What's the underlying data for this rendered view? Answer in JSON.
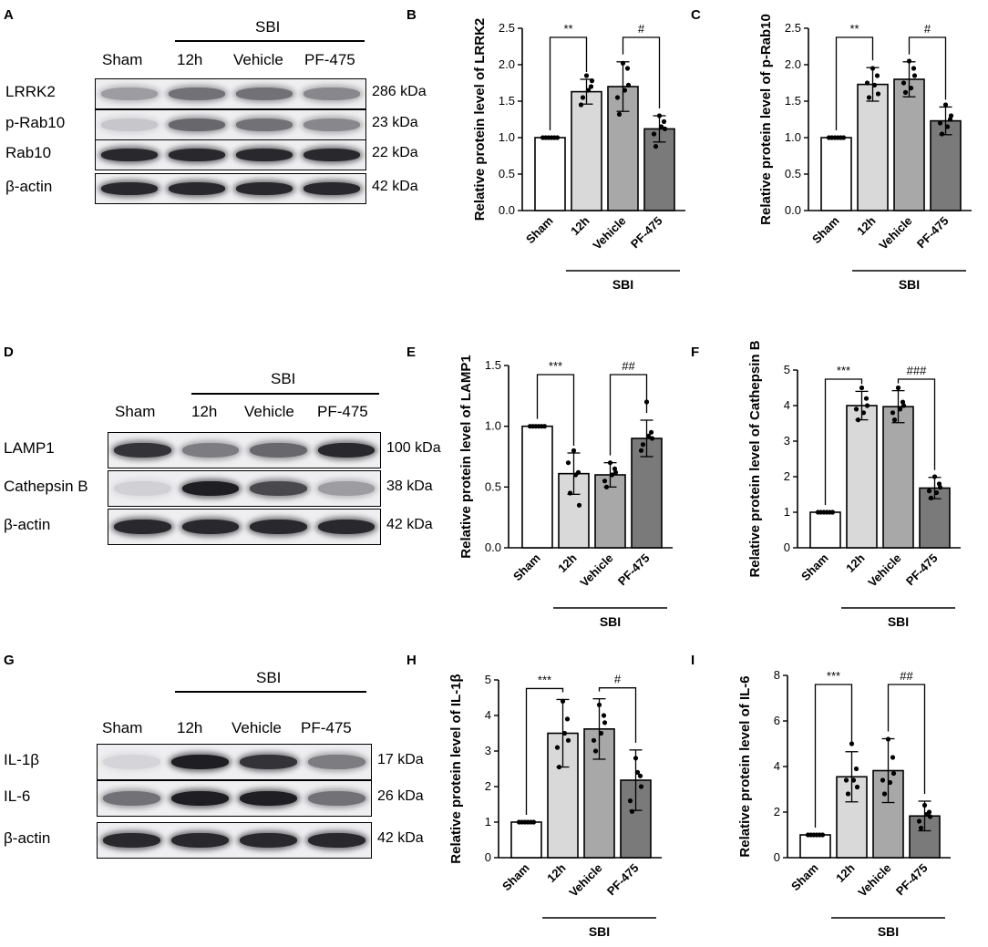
{
  "panels": {
    "A": "A",
    "B": "B",
    "C": "C",
    "D": "D",
    "E": "E",
    "F": "F",
    "G": "G",
    "H": "H",
    "I": "I"
  },
  "blots": [
    {
      "id": "blot-A",
      "group_label": "SBI",
      "lanes": [
        "Sham",
        "12h",
        "Vehicle",
        "PF-475"
      ],
      "rows": [
        {
          "label": "LRRK2",
          "kda": "286 kDa",
          "intensity": [
            0.35,
            0.55,
            0.55,
            0.45
          ]
        },
        {
          "label": "p-Rab10",
          "kda": "23 kDa",
          "intensity": [
            0.15,
            0.6,
            0.55,
            0.45
          ]
        },
        {
          "label": "Rab10",
          "kda": "22 kDa",
          "intensity": [
            0.9,
            0.9,
            0.9,
            0.9
          ]
        },
        {
          "label": "β-actin",
          "kda": "42 kDa",
          "intensity": [
            0.9,
            0.9,
            0.9,
            0.9
          ]
        }
      ]
    },
    {
      "id": "blot-D",
      "group_label": "SBI",
      "lanes": [
        "Sham",
        "12h",
        "Vehicle",
        "PF-475"
      ],
      "rows": [
        {
          "label": "LAMP1",
          "kda": "100 kDa",
          "intensity": [
            0.85,
            0.5,
            0.6,
            0.9
          ]
        },
        {
          "label": "Cathepsin B",
          "kda": "38 kDa",
          "intensity": [
            0.1,
            0.95,
            0.75,
            0.35
          ]
        },
        {
          "label": "β-actin",
          "kda": "42 kDa",
          "intensity": [
            0.9,
            0.9,
            0.9,
            0.9
          ]
        }
      ]
    },
    {
      "id": "blot-G",
      "group_label": "SBI",
      "lanes": [
        "Sham",
        "12h",
        "Vehicle",
        "PF-475"
      ],
      "rows": [
        {
          "label": "IL-1β",
          "kda": "17 kDa",
          "intensity": [
            0.08,
            0.95,
            0.85,
            0.5
          ]
        },
        {
          "label": "IL-6",
          "kda": "26 kDa",
          "intensity": [
            0.55,
            0.95,
            0.95,
            0.55
          ]
        },
        {
          "label": "β-actin",
          "kda": "42 kDa",
          "intensity": [
            0.9,
            0.9,
            0.9,
            0.9
          ]
        }
      ]
    }
  ],
  "chart_data": [
    {
      "id": "B",
      "type": "bar",
      "categories": [
        "Sham",
        "12h",
        "Vehicle",
        "PF-475"
      ],
      "group_label": "SBI",
      "values": [
        1.0,
        1.63,
        1.7,
        1.12
      ],
      "sd": [
        0.0,
        0.17,
        0.34,
        0.18
      ],
      "points": [
        [
          1,
          1,
          1,
          1,
          1,
          1
        ],
        [
          1.85,
          1.55,
          1.7,
          1.45,
          1.78,
          1.65
        ],
        [
          2.02,
          1.32,
          1.95,
          1.55,
          1.72,
          1.65
        ],
        [
          1.3,
          0.88,
          1.22,
          1.05,
          1.12,
          1.15
        ]
      ],
      "ylabel": "Relative protein level of LRRK2",
      "ylim": [
        0,
        2.5
      ],
      "yticks": [
        "0.0",
        "0.5",
        "1.0",
        "1.5",
        "2.0",
        "2.5"
      ],
      "sig": [
        {
          "from": 0,
          "to": 1,
          "label": "**"
        },
        {
          "from": 2,
          "to": 3,
          "label": "#"
        }
      ],
      "bar_colors": [
        "#ffffff",
        "#d9d9d9",
        "#a8a8a8",
        "#7a7a7a"
      ]
    },
    {
      "id": "C",
      "type": "bar",
      "categories": [
        "Sham",
        "12h",
        "Vehicle",
        "PF-475"
      ],
      "group_label": "SBI",
      "values": [
        1.0,
        1.73,
        1.8,
        1.23
      ],
      "sd": [
        0.0,
        0.23,
        0.24,
        0.19
      ],
      "points": [
        [
          1,
          1,
          1,
          1,
          1,
          1
        ],
        [
          1.95,
          1.55,
          1.85,
          1.75,
          1.6,
          1.72
        ],
        [
          2.05,
          1.62,
          1.95,
          1.75,
          1.85,
          1.68
        ],
        [
          1.45,
          1.05,
          1.25,
          1.2,
          1.3,
          1.15
        ]
      ],
      "ylabel": "Relative protein level of p-Rab10",
      "ylim": [
        0,
        2.5
      ],
      "yticks": [
        "0.0",
        "0.5",
        "1.0",
        "1.5",
        "2.0",
        "2.5"
      ],
      "sig": [
        {
          "from": 0,
          "to": 1,
          "label": "**"
        },
        {
          "from": 2,
          "to": 3,
          "label": "#"
        }
      ],
      "bar_colors": [
        "#ffffff",
        "#d9d9d9",
        "#a8a8a8",
        "#7a7a7a"
      ]
    },
    {
      "id": "E",
      "type": "bar",
      "categories": [
        "Sham",
        "12h",
        "Vehicle",
        "PF-475"
      ],
      "group_label": "SBI",
      "values": [
        1.0,
        0.61,
        0.6,
        0.9
      ],
      "sd": [
        0.0,
        0.17,
        0.1,
        0.15
      ],
      "points": [
        [
          1,
          1,
          1,
          1,
          1,
          1
        ],
        [
          0.8,
          0.45,
          0.62,
          0.7,
          0.35,
          0.6
        ],
        [
          0.7,
          0.5,
          0.65,
          0.55,
          0.62,
          0.6
        ],
        [
          1.2,
          0.85,
          0.95,
          0.8,
          0.9,
          0.92
        ]
      ],
      "ylabel": "Relative protein level of LAMP1",
      "ylim": [
        0,
        1.5
      ],
      "yticks": [
        "0.0",
        "0.5",
        "1.0",
        "1.5"
      ],
      "sig": [
        {
          "from": 0,
          "to": 1,
          "label": "***"
        },
        {
          "from": 2,
          "to": 3,
          "label": "##"
        }
      ],
      "bar_colors": [
        "#ffffff",
        "#d9d9d9",
        "#a8a8a8",
        "#7a7a7a"
      ]
    },
    {
      "id": "F",
      "type": "bar",
      "categories": [
        "Sham",
        "12h",
        "Vehicle",
        "PF-475"
      ],
      "group_label": "SBI",
      "values": [
        1.0,
        4.0,
        3.97,
        1.68
      ],
      "sd": [
        0.0,
        0.4,
        0.45,
        0.3
      ],
      "points": [
        [
          1,
          1,
          1,
          1,
          1,
          1
        ],
        [
          4.5,
          3.6,
          4.2,
          3.9,
          4.0,
          3.8
        ],
        [
          4.5,
          3.6,
          4.1,
          3.8,
          4.0,
          3.9
        ],
        [
          2.0,
          1.4,
          1.8,
          1.6,
          1.7,
          1.55
        ]
      ],
      "ylabel": "Relative protein level of Cathepsin B",
      "ylim": [
        0,
        5
      ],
      "yticks": [
        "0",
        "1",
        "2",
        "3",
        "4",
        "5"
      ],
      "sig": [
        {
          "from": 0,
          "to": 1,
          "label": "***"
        },
        {
          "from": 2,
          "to": 3,
          "label": "###"
        }
      ],
      "bar_colors": [
        "#ffffff",
        "#d9d9d9",
        "#a8a8a8",
        "#7a7a7a"
      ]
    },
    {
      "id": "H",
      "type": "bar",
      "categories": [
        "Sham",
        "12h",
        "Vehicle",
        "PF-475"
      ],
      "group_label": "SBI",
      "values": [
        1.0,
        3.5,
        3.62,
        2.18
      ],
      "sd": [
        0.0,
        0.95,
        0.85,
        0.85
      ],
      "points": [
        [
          1,
          1,
          1,
          1,
          1,
          1
        ],
        [
          4.4,
          2.55,
          3.9,
          3.1,
          3.3,
          3.5
        ],
        [
          4.3,
          3.0,
          4.0,
          3.3,
          3.8,
          3.5
        ],
        [
          2.8,
          1.3,
          2.3,
          1.6,
          2.0,
          2.4
        ]
      ],
      "ylabel": "Relative protein level of IL-1β",
      "ylim": [
        0,
        5
      ],
      "yticks": [
        "0",
        "1",
        "2",
        "3",
        "4",
        "5"
      ],
      "sig": [
        {
          "from": 0,
          "to": 1,
          "label": "***"
        },
        {
          "from": 2,
          "to": 3,
          "label": "#"
        }
      ],
      "bar_colors": [
        "#ffffff",
        "#d9d9d9",
        "#a8a8a8",
        "#7a7a7a"
      ]
    },
    {
      "id": "I",
      "type": "bar",
      "categories": [
        "Sham",
        "12h",
        "Vehicle",
        "PF-475"
      ],
      "group_label": "SBI",
      "values": [
        1.0,
        3.55,
        3.82,
        1.83
      ],
      "sd": [
        0.0,
        1.1,
        1.4,
        0.65
      ],
      "points": [
        [
          1,
          1,
          1,
          1,
          1,
          1
        ],
        [
          5.0,
          2.8,
          3.9,
          3.4,
          3.1,
          3.4
        ],
        [
          5.2,
          2.8,
          4.4,
          3.4,
          3.7,
          3.3
        ],
        [
          2.3,
          1.3,
          2.0,
          1.6,
          1.8,
          1.9
        ]
      ],
      "ylabel": "Relative protein level of IL-6",
      "ylim": [
        0,
        8
      ],
      "yticks": [
        "0",
        "2",
        "4",
        "6",
        "8"
      ],
      "sig": [
        {
          "from": 0,
          "to": 1,
          "label": "***"
        },
        {
          "from": 2,
          "to": 3,
          "label": "##"
        }
      ],
      "bar_colors": [
        "#ffffff",
        "#d9d9d9",
        "#a8a8a8",
        "#7a7a7a"
      ]
    }
  ]
}
